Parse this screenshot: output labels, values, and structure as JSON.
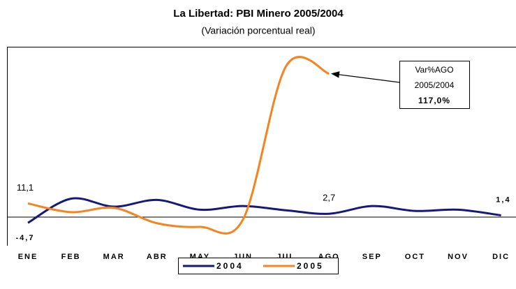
{
  "chart_data": {
    "type": "line",
    "title": "La Libertad: PBI Minero 2005/2004",
    "subtitle": "(Variación porcentual real)",
    "categories": [
      "ENE",
      "FEB",
      "MAR",
      "ABR",
      "MAY",
      "JUN",
      "JUL",
      "AGO",
      "SEP",
      "OCT",
      "NOV",
      "DIC"
    ],
    "series": [
      {
        "name": "2004",
        "color": "#14197a",
        "values": [
          -4.7,
          15,
          8.5,
          14,
          6,
          9,
          5.5,
          2.7,
          9,
          5,
          6,
          1.4
        ],
        "value_labels": [
          "-4,7",
          null,
          null,
          null,
          null,
          null,
          null,
          "2,7",
          null,
          null,
          null,
          "1,4"
        ]
      },
      {
        "name": "2005",
        "color": "#f7831f",
        "values": [
          11.1,
          4,
          7.5,
          -5,
          -8,
          -2,
          123,
          117,
          null,
          null,
          null,
          null
        ],
        "value_labels": [
          "11,1",
          null,
          null,
          null,
          null,
          null,
          null,
          null,
          null,
          null,
          null,
          null
        ]
      }
    ],
    "annotation": {
      "lines": [
        "Var%AGO",
        "2005/2004",
        "117,0%"
      ],
      "series": 1,
      "point": 7
    },
    "legend": "bottom"
  }
}
